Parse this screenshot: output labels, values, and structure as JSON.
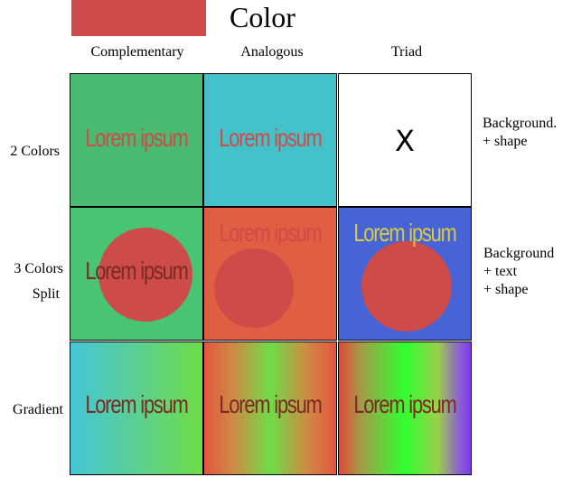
{
  "header": {
    "title": "Color",
    "swatch_color": "#cd4b48"
  },
  "columns": [
    "Complementary",
    "Analogous",
    "Triad"
  ],
  "rows": {
    "two_colors": "2 Colors",
    "three_colors_line1": "3 Colors",
    "three_colors_line2": "Split",
    "gradient": "Gradient"
  },
  "side_notes": {
    "row1_line1": "Background.",
    "row1_line2": "+ shape",
    "row2_line1": "Background",
    "row2_line2": "+ text",
    "row2_line3": "+ shape"
  },
  "cells": {
    "sample_text": "Lorem ipsum",
    "x_mark": "X"
  },
  "colors": {
    "red": "#cd4b48",
    "green": "#4ab971",
    "green_bright": "#48c472",
    "teal": "#45c1c9",
    "orange": "#e05e42",
    "blue": "#4664d6",
    "yellow": "#d7c94a",
    "dark_red": "#7a2a22"
  }
}
